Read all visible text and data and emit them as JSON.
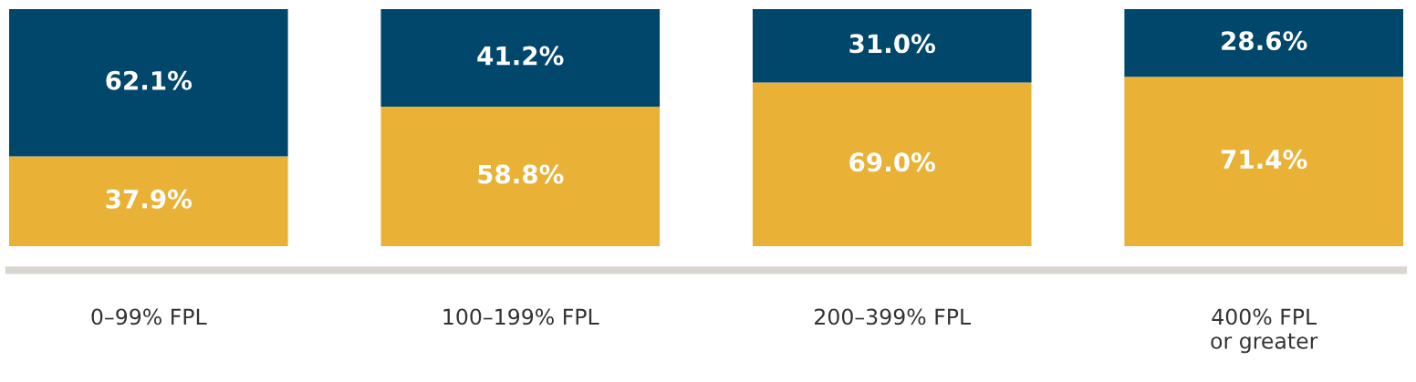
{
  "chart_data": {
    "type": "bar",
    "stacked": true,
    "categories": [
      "0–99% FPL",
      "100–199% FPL",
      "200–399% FPL",
      "400% FPL\nor greater"
    ],
    "series": [
      {
        "color": "#e9b237",
        "values": [
          37.9,
          58.8,
          69.0,
          71.4
        ],
        "value_labels": [
          "37.9%",
          "58.8%",
          "69.0%",
          "71.4%"
        ]
      },
      {
        "color": "#00476b",
        "values": [
          62.1,
          41.2,
          31.0,
          28.6
        ],
        "value_labels": [
          "62.1%",
          "41.2%",
          "31.0%",
          "28.6%"
        ]
      }
    ],
    "grid": false
  }
}
